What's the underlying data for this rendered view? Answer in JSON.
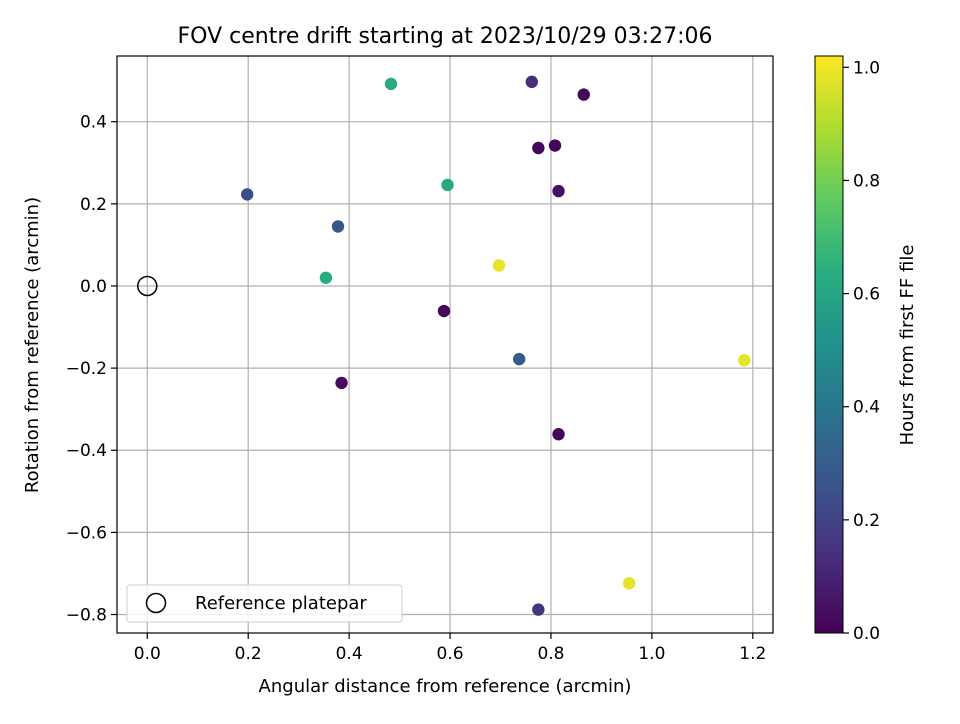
{
  "chart_data": {
    "type": "scatter",
    "title": "FOV centre drift starting at 2023/10/29 03:27:06",
    "xlabel": "Angular distance from reference (arcmin)",
    "ylabel": "Rotation from reference (arcmin)",
    "xlim": [
      -0.06,
      1.24
    ],
    "ylim": [
      -0.845,
      0.56
    ],
    "xticks": [
      0.0,
      0.2,
      0.4,
      0.6,
      0.8,
      1.0,
      1.2
    ],
    "xtick_labels": [
      "0.0",
      "0.2",
      "0.4",
      "0.6",
      "0.8",
      "1.0",
      "1.2"
    ],
    "yticks": [
      0.4,
      0.2,
      0.0,
      -0.2,
      -0.4,
      -0.6,
      -0.8
    ],
    "ytick_labels": [
      "0.4",
      "0.2",
      "0.0",
      "−0.2",
      "−0.4",
      "−0.6",
      "−0.8"
    ],
    "grid": true,
    "colormap": "viridis",
    "colorbar": {
      "label": "Hours from first FF file",
      "range": [
        0.0,
        1.02
      ],
      "ticks": [
        0.0,
        0.2,
        0.4,
        0.6,
        0.8,
        1.0
      ],
      "tick_labels": [
        "0.0",
        "0.2",
        "0.4",
        "0.6",
        "0.8",
        "1.0"
      ]
    },
    "legend": {
      "entries": [
        "Reference platepar"
      ],
      "placement": "lower-left"
    },
    "reference_point": {
      "x": 0.0,
      "y": 0.0
    },
    "points": [
      {
        "x": 0.483,
        "y": 0.492,
        "hours": 0.62
      },
      {
        "x": 0.762,
        "y": 0.497,
        "hours": 0.13
      },
      {
        "x": 0.865,
        "y": 0.466,
        "hours": 0.02
      },
      {
        "x": 0.808,
        "y": 0.342,
        "hours": 0.02
      },
      {
        "x": 0.775,
        "y": 0.336,
        "hours": 0.02
      },
      {
        "x": 0.595,
        "y": 0.246,
        "hours": 0.61
      },
      {
        "x": 0.198,
        "y": 0.223,
        "hours": 0.24
      },
      {
        "x": 0.815,
        "y": 0.231,
        "hours": 0.05
      },
      {
        "x": 0.378,
        "y": 0.145,
        "hours": 0.27
      },
      {
        "x": 0.697,
        "y": 0.05,
        "hours": 0.98
      },
      {
        "x": 0.354,
        "y": 0.02,
        "hours": 0.62
      },
      {
        "x": 0.588,
        "y": -0.061,
        "hours": 0.02
      },
      {
        "x": 0.737,
        "y": -0.178,
        "hours": 0.29
      },
      {
        "x": 1.183,
        "y": -0.181,
        "hours": 0.98
      },
      {
        "x": 0.385,
        "y": -0.236,
        "hours": 0.03
      },
      {
        "x": 0.815,
        "y": -0.361,
        "hours": 0.02
      },
      {
        "x": 0.955,
        "y": -0.724,
        "hours": 0.98
      },
      {
        "x": 0.775,
        "y": -0.788,
        "hours": 0.16
      }
    ]
  }
}
